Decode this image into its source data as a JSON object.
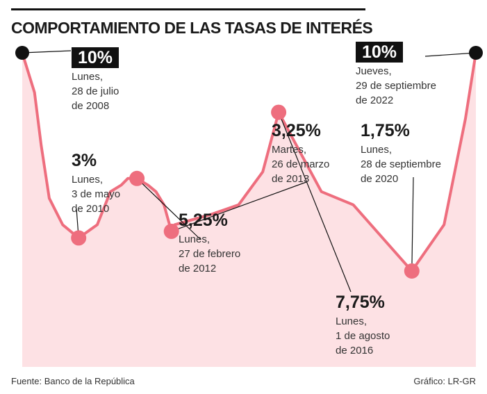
{
  "title": "COMPORTAMIENTO DE LAS TASAS DE INTERÉS",
  "source": "Fuente: Banco de la República",
  "credit": "Gráfico: LR-GR",
  "colors": {
    "line": "#ee6e7e",
    "area": "#fde1e4",
    "marker": "#ee6e7e",
    "endpoint": "#111111"
  },
  "chart_data": {
    "type": "area",
    "title": "COMPORTAMIENTO DE LAS TASAS DE INTERÉS",
    "xlabel": "",
    "ylabel": "",
    "grid": false,
    "series": [
      {
        "values": [
          [
            "2008-07-28",
            10
          ],
          [
            "2008-12-15",
            8.5
          ],
          [
            "2009-03-01",
            6.5
          ],
          [
            "2009-06-01",
            4.5
          ],
          [
            "2009-11-01",
            3.5
          ],
          [
            "2010-05-03",
            3
          ],
          [
            "2010-12-01",
            3.5
          ],
          [
            "2011-05-01",
            4.75
          ],
          [
            "2011-09-01",
            5
          ],
          [
            "2011-11-15",
            5.25
          ],
          [
            "2012-02-27",
            5.25
          ],
          [
            "2012-07-01",
            5
          ],
          [
            "2012-10-01",
            4.75
          ],
          [
            "2013-01-01",
            4.25
          ],
          [
            "2013-03-26",
            3.25
          ],
          [
            "2013-05-01",
            3.5
          ],
          [
            "2014-07-01",
            3.9
          ],
          [
            "2015-05-01",
            4.25
          ],
          [
            "2016-02-01",
            5.5
          ],
          [
            "2016-08-01",
            7.75
          ],
          [
            "2017-12-01",
            4.75
          ],
          [
            "2018-12-01",
            4.25
          ],
          [
            "2020-09-28",
            1.75
          ],
          [
            "2021-10-01",
            3.5
          ],
          [
            "2022-06-01",
            7.5
          ],
          [
            "2022-09-29",
            10
          ]
        ]
      }
    ],
    "highlights": [
      {
        "date": "2008-07-28",
        "value": 10,
        "rate": "10%",
        "lines": [
          "Lunes,",
          "28 de julio",
          "de 2008"
        ]
      },
      {
        "date": "2010-05-03",
        "value": 3,
        "rate": "3%",
        "lines": [
          "Lunes,",
          "3 de mayo",
          "de 2010"
        ]
      },
      {
        "date": "2012-02-27",
        "value": 5.25,
        "rate": "5,25%",
        "lines": [
          "Lunes,",
          "27 de febrero",
          "de 2012"
        ]
      },
      {
        "date": "2013-03-26",
        "value": 3.25,
        "rate": "3,25%",
        "lines": [
          "Martes,",
          "26 de marzo",
          "de 2013"
        ]
      },
      {
        "date": "2016-08-01",
        "value": 7.75,
        "rate": "7,75%",
        "lines": [
          "Lunes,",
          "1 de agosto",
          "de 2016"
        ]
      },
      {
        "date": "2020-09-28",
        "value": 1.75,
        "rate": "1,75%",
        "lines": [
          "Lunes,",
          "28 de septiembre",
          "de 2020"
        ]
      },
      {
        "date": "2022-09-29",
        "value": 10,
        "rate": "10%",
        "lines": [
          "Jueves,",
          "29 de septiembre",
          "de 2022"
        ]
      }
    ]
  }
}
